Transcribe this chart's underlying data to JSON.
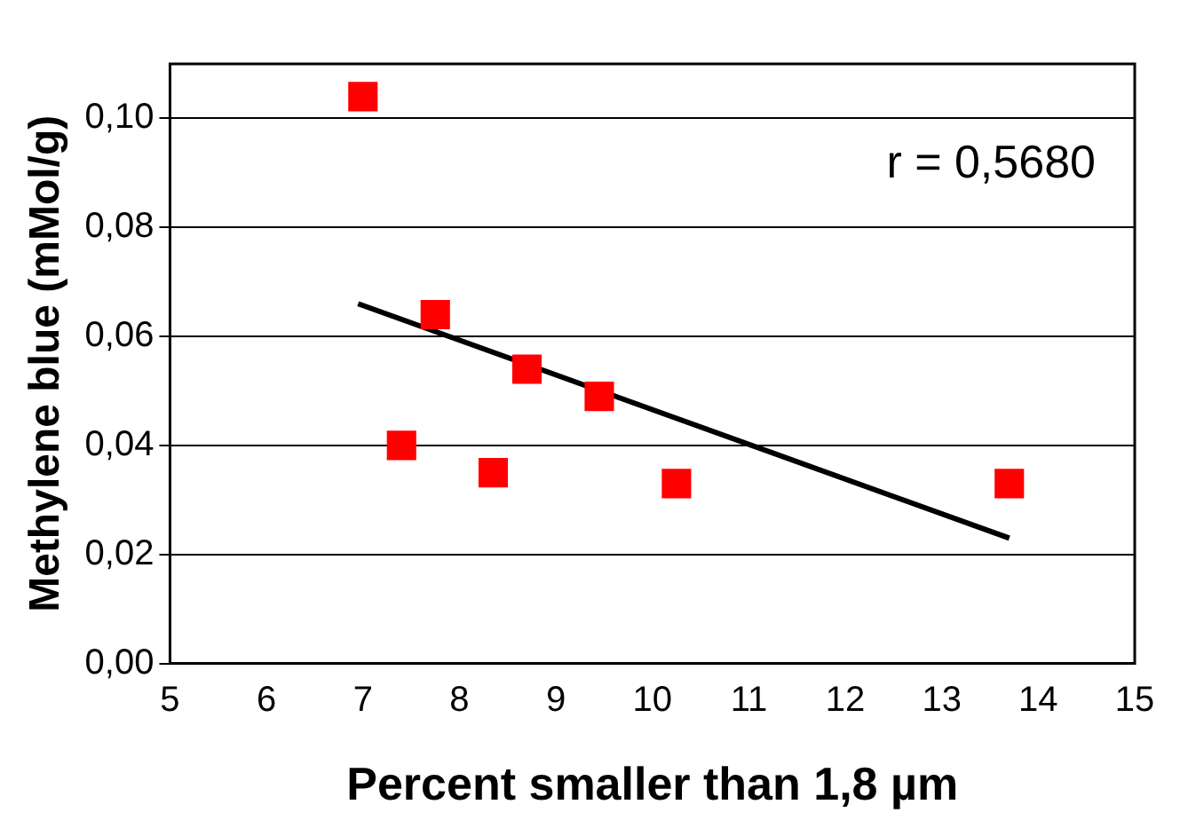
{
  "chart_data": {
    "type": "scatter",
    "xlabel": "Percent smaller than 1,8 µm",
    "ylabel": "Methylene blue (mMol/g)",
    "annotations": [
      "r = 0,5680"
    ],
    "series": [
      {
        "marker": "square",
        "color": "#ff0000",
        "x": [
          7.0,
          7.4,
          7.75,
          8.35,
          8.7,
          9.45,
          10.25,
          13.7
        ],
        "values": [
          0.104,
          0.04,
          0.064,
          0.035,
          0.054,
          0.049,
          0.033,
          0.033
        ]
      },
      {
        "type": "line",
        "marker": "none",
        "color": "#000000",
        "x": [
          6.95,
          13.7
        ],
        "values": [
          0.066,
          0.023
        ]
      }
    ],
    "xlim": [
      5,
      15
    ],
    "xticks": [
      5,
      6,
      7,
      8,
      9,
      10,
      11,
      12,
      13,
      14,
      15
    ],
    "ylim": [
      0,
      0.11
    ],
    "yticks": [
      {
        "value": 0,
        "label": "0,00"
      },
      {
        "value": 0.02,
        "label": "0,02"
      },
      {
        "value": 0.04,
        "label": "0,04"
      },
      {
        "value": 0.06,
        "label": "0,06"
      },
      {
        "value": 0.08,
        "label": "0,08"
      },
      {
        "value": 0.1,
        "label": "0,10"
      }
    ],
    "grid": "y",
    "legend": false
  }
}
